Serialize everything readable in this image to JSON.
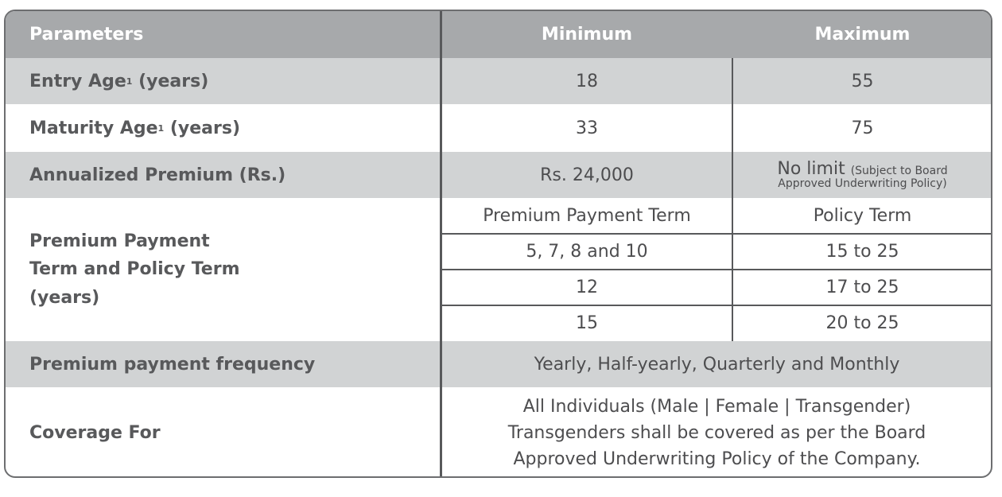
{
  "header": {
    "parameters": "Parameters",
    "minimum": "Minimum",
    "maximum": "Maximum"
  },
  "rows": {
    "entry_age": {
      "label": "Entry Age",
      "sup": "1",
      "suffix": " (years)",
      "min": "18",
      "max": "55"
    },
    "maturity_age": {
      "label": "Maturity Age",
      "sup": "1",
      "suffix": " (years)",
      "min": "33",
      "max": "75"
    },
    "annualized_premium": {
      "label": "Annualized Premium (Rs.)",
      "min": "Rs. 24,000",
      "max_main": "No limit",
      "max_note_1": "(Subject to Board",
      "max_note_2": "Approved Underwriting Policy)"
    },
    "terms": {
      "label": "Premium Payment Term and Policy Term (years)",
      "col1_header": "Premium Payment Term",
      "col2_header": "Policy Term",
      "items": [
        {
          "ppt": "5, 7, 8 and 10",
          "pt": "15 to 25"
        },
        {
          "ppt": "12",
          "pt": "17 to 25"
        },
        {
          "ppt": "15",
          "pt": "20 to 25"
        }
      ]
    },
    "frequency": {
      "label": "Premium payment frequency",
      "value": "Yearly, Half-yearly, Quarterly and Monthly"
    },
    "coverage": {
      "label": "Coverage For",
      "line1": "All Individuals (Male | Female | Transgender)",
      "line2": "Transgenders shall be covered as per the Board",
      "line3": "Approved Underwriting Policy of the Company."
    }
  },
  "colors": {
    "header_bg": "#a7a9ab",
    "band_gray": "#d1d3d4",
    "border": "#58595b"
  }
}
